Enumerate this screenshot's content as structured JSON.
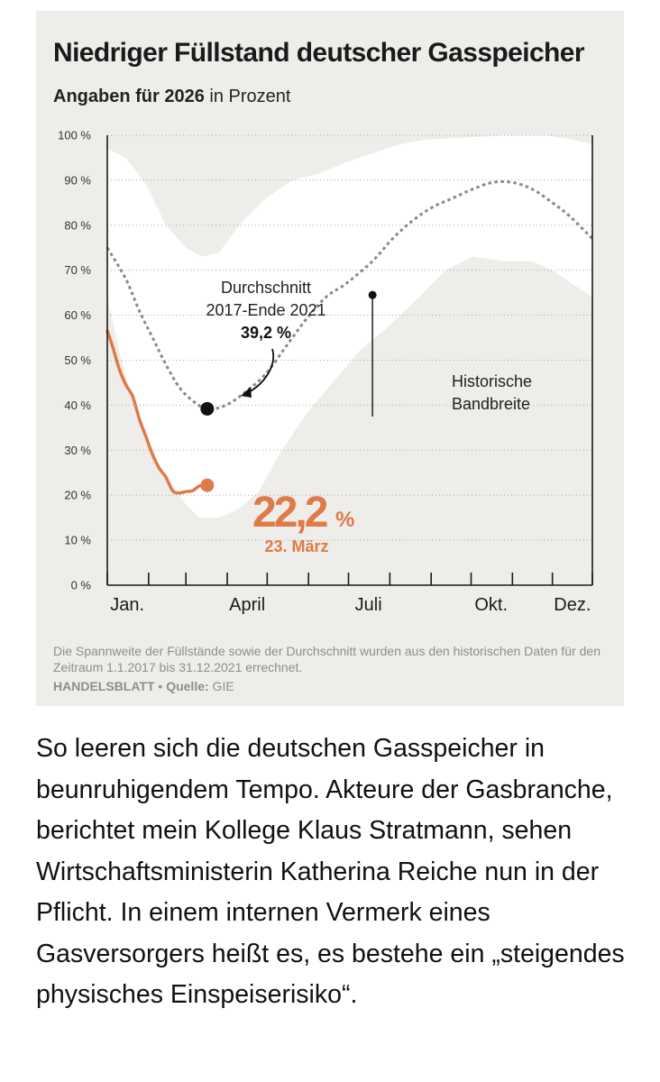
{
  "chart_data": {
    "type": "area",
    "title": "Niedriger Füllstand deutscher Gasspeicher",
    "subtitle_bold": "Angaben für 2026",
    "subtitle_rest": " in Prozent",
    "ylim": [
      0,
      100
    ],
    "y_ticks": [
      0,
      10,
      20,
      30,
      40,
      50,
      60,
      70,
      80,
      90,
      100
    ],
    "y_tick_labels": [
      "0 %",
      "10 %",
      "20 %",
      "30 %",
      "40 %",
      "50 %",
      "60 %",
      "70 %",
      "80 %",
      "90 %",
      "100 %"
    ],
    "x_domain_days": [
      1,
      365
    ],
    "x_tick_days": [
      1,
      32,
      60,
      91,
      121,
      152,
      182,
      213,
      244,
      274,
      305,
      335,
      365
    ],
    "x_labels": [
      {
        "day": 16,
        "label": "Jan."
      },
      {
        "day": 106,
        "label": "April"
      },
      {
        "day": 197,
        "label": "Juli"
      },
      {
        "day": 289,
        "label": "Okt."
      },
      {
        "day": 350,
        "label": "Dez."
      }
    ],
    "band": {
      "name": "Historische Bandbreite",
      "upper": [
        [
          1,
          97
        ],
        [
          15,
          95
        ],
        [
          30,
          89
        ],
        [
          45,
          80
        ],
        [
          60,
          75
        ],
        [
          72,
          73
        ],
        [
          85,
          74
        ],
        [
          100,
          80
        ],
        [
          120,
          86
        ],
        [
          140,
          90
        ],
        [
          160,
          91.5
        ],
        [
          180,
          94
        ],
        [
          200,
          96
        ],
        [
          220,
          98
        ],
        [
          240,
          99
        ],
        [
          270,
          99.5
        ],
        [
          300,
          100
        ],
        [
          330,
          100
        ],
        [
          350,
          99
        ],
        [
          365,
          98
        ]
      ],
      "lower": [
        [
          1,
          64
        ],
        [
          10,
          52
        ],
        [
          20,
          41
        ],
        [
          30,
          32
        ],
        [
          45,
          24
        ],
        [
          60,
          18
        ],
        [
          70,
          15
        ],
        [
          85,
          15
        ],
        [
          100,
          17
        ],
        [
          115,
          21
        ],
        [
          130,
          29
        ],
        [
          150,
          38
        ],
        [
          170,
          45
        ],
        [
          190,
          52
        ],
        [
          210,
          57
        ],
        [
          235,
          64
        ],
        [
          255,
          70
        ],
        [
          275,
          73
        ],
        [
          300,
          72
        ],
        [
          320,
          72
        ],
        [
          335,
          70
        ],
        [
          350,
          67
        ],
        [
          365,
          64
        ]
      ]
    },
    "series": [
      {
        "name": "Durchschnitt 2017-Ende 2021",
        "style": "dotted",
        "color": "#8a8a8a",
        "points": [
          [
            1,
            75
          ],
          [
            15,
            68
          ],
          [
            25,
            61
          ],
          [
            35,
            55
          ],
          [
            45,
            49
          ],
          [
            55,
            44
          ],
          [
            65,
            41
          ],
          [
            76,
            39.2
          ],
          [
            90,
            40
          ],
          [
            105,
            43
          ],
          [
            120,
            47
          ],
          [
            135,
            53
          ],
          [
            150,
            59
          ],
          [
            165,
            64
          ],
          [
            180,
            67
          ],
          [
            200,
            72
          ],
          [
            215,
            77
          ],
          [
            230,
            81
          ],
          [
            245,
            84
          ],
          [
            260,
            86
          ],
          [
            275,
            88
          ],
          [
            290,
            89.5
          ],
          [
            305,
            89.5
          ],
          [
            320,
            88
          ],
          [
            335,
            85
          ],
          [
            348,
            82
          ],
          [
            365,
            77
          ]
        ]
      },
      {
        "name": "2026",
        "style": "solid",
        "color": "#e07a48",
        "points": [
          [
            1,
            56.5
          ],
          [
            5,
            53
          ],
          [
            10,
            48
          ],
          [
            15,
            44.5
          ],
          [
            20,
            42
          ],
          [
            25,
            37
          ],
          [
            30,
            33
          ],
          [
            35,
            29
          ],
          [
            40,
            26
          ],
          [
            45,
            24
          ],
          [
            50,
            21
          ],
          [
            55,
            20.5
          ],
          [
            60,
            20.8
          ],
          [
            65,
            21
          ],
          [
            70,
            22
          ],
          [
            76,
            22.2
          ]
        ]
      }
    ],
    "average_annotation": {
      "day": 76,
      "value": 39.2,
      "line1": "Durchschnitt",
      "line2": "2017-Ende 2021",
      "value_label": "39,2 %"
    },
    "current_annotation": {
      "day": 76,
      "value": 22.2,
      "value_label": "22,2",
      "unit": "%",
      "date_label": "23. März"
    },
    "band_annotation": {
      "line1": "Historische",
      "line2": "Bandbreite",
      "marker_day": 200,
      "marker_top": 64.5,
      "marker_bottom": 37.5
    },
    "colors": {
      "background": "#eeedea",
      "band": "#ffffff",
      "average": "#8a8a8a",
      "current": "#e07a48",
      "axis": "#1a1a1a"
    }
  },
  "footnote": "Die Spannweite der Füllstände sowie der Durchschnitt wurden aus den historischen Daten für den Zeitraum 1.1.2017 bis 31.12.2021 errechnet.",
  "credit": {
    "brand": "HANDELSBLATT",
    "separator": " • ",
    "source_label": "Quelle:",
    "source": " GIE"
  },
  "body_text": "So leeren sich die deutschen Gasspeicher in beunruhigendem Tempo. Akteure der Gasbranche, berichtet mein Kollege Klaus Stratmann, sehen Wirtschaftsministerin Katherina Reiche nun in der Pflicht. In einem internen Vermerk eines Gasversorgers heißt es, es bestehe ein „steigendes physisches Einspeiserisiko“."
}
